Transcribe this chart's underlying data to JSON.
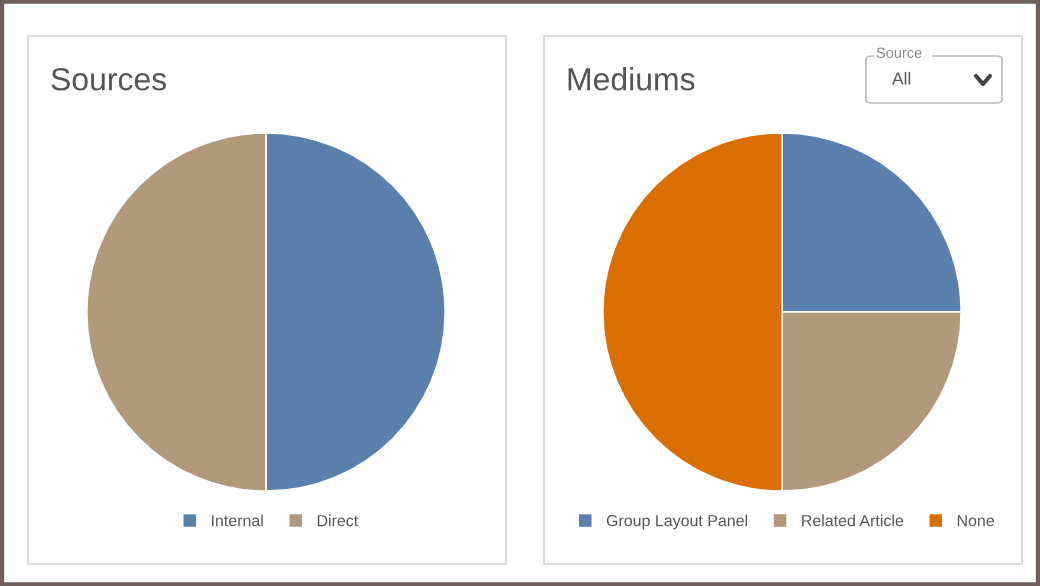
{
  "chart_data": [
    {
      "type": "pie",
      "title": "Sources",
      "categories": [
        "Internal",
        "Direct"
      ],
      "values": [
        50,
        50
      ],
      "colors": [
        "#5b7fad",
        "#b09a7b"
      ],
      "legend": "bottom"
    },
    {
      "type": "pie",
      "title": "Mediums",
      "categories": [
        "Group Layout Panel",
        "Related Article",
        "None"
      ],
      "values": [
        25,
        25,
        50
      ],
      "colors": [
        "#5b7fad",
        "#b09a7b",
        "#db6e00"
      ],
      "legend": "bottom",
      "annotations": [
        "Source",
        "All"
      ]
    }
  ]
}
